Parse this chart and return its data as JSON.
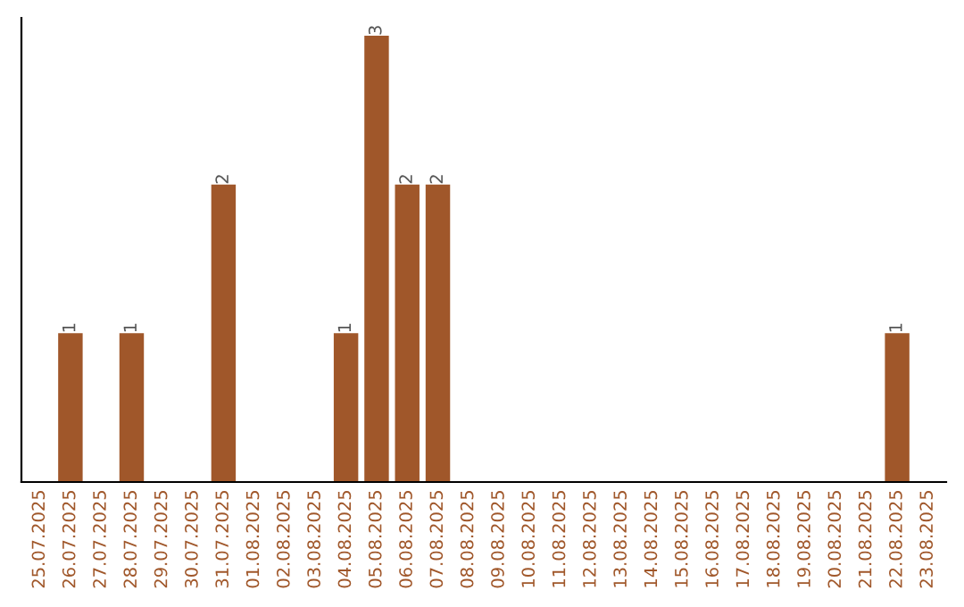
{
  "chart_data": {
    "type": "bar",
    "categories": [
      "25.07.2025",
      "26.07.2025",
      "27.07.2025",
      "28.07.2025",
      "29.07.2025",
      "30.07.2025",
      "31.07.2025",
      "01.08.2025",
      "02.08.2025",
      "03.08.2025",
      "04.08.2025",
      "05.08.2025",
      "06.08.2025",
      "07.08.2025",
      "08.08.2025",
      "09.08.2025",
      "10.08.2025",
      "11.08.2025",
      "12.08.2025",
      "13.08.2025",
      "14.08.2025",
      "15.08.2025",
      "16.08.2025",
      "17.08.2025",
      "18.08.2025",
      "19.08.2025",
      "20.08.2025",
      "21.08.2025",
      "22.08.2025",
      "23.08.2025"
    ],
    "values": [
      0,
      1,
      0,
      1,
      0,
      0,
      2,
      0,
      0,
      0,
      1,
      3,
      2,
      2,
      0,
      0,
      0,
      0,
      0,
      0,
      0,
      0,
      0,
      0,
      0,
      0,
      0,
      0,
      1,
      0
    ],
    "value_labels": [
      null,
      "1",
      null,
      "1",
      null,
      null,
      "2",
      null,
      null,
      null,
      "1",
      "3",
      "2",
      "2",
      null,
      null,
      null,
      null,
      null,
      null,
      null,
      null,
      null,
      null,
      null,
      null,
      null,
      null,
      "1",
      null
    ],
    "color": "#a0572a",
    "tick_labels": "x",
    "grid": false,
    "legend": false
  }
}
